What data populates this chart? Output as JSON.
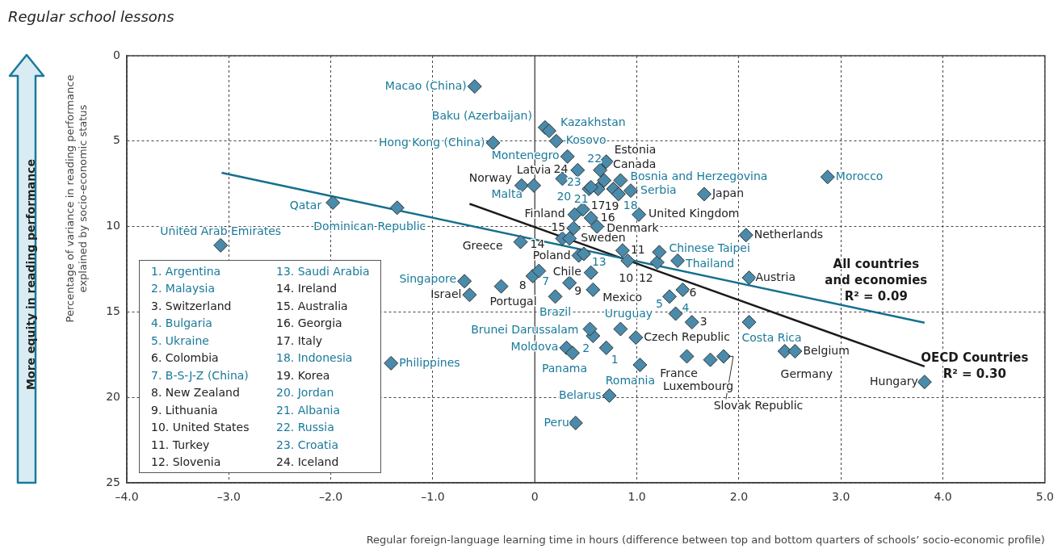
{
  "chart_data": {
    "type": "scatter",
    "title": "Regular school lessons",
    "xlabel": "Regular foreign-language learning time in hours (difference between top and bottom quarters of schools’ socio-economic profile)",
    "ylabel": "Percentage of variance in reading performance explained by socio-economic status",
    "xlim": [
      -4,
      5
    ],
    "xticks": [
      {
        "value": -4,
        "label": "–4.0"
      },
      {
        "value": -3,
        "label": "–3.0"
      },
      {
        "value": -2,
        "label": "–2.0"
      },
      {
        "value": -1,
        "label": "–1.0"
      },
      0,
      {
        "value": 1,
        "label": "1.0"
      },
      {
        "value": 2,
        "label": "2.0"
      },
      {
        "value": 3,
        "label": "3.0"
      },
      {
        "value": 4,
        "label": "4.0"
      },
      {
        "value": 5,
        "label": "5.0"
      }
    ],
    "ylim": [
      25,
      0
    ],
    "yticks": [
      0,
      5,
      10,
      15,
      20,
      25
    ],
    "grid": true,
    "legend": false,
    "marker": "diamond",
    "ref_lines": [
      {
        "axis": "x",
        "value": 0,
        "color": "#555555"
      }
    ],
    "series": [
      {
        "color": "#4a8aaa",
        "x": [
          0.7,
          0.57,
          1.38,
          1.32,
          0.04,
          0.48,
          0.82,
          0.53,
          0.62,
          0.68,
          0.55,
          -0.59,
          0.1,
          0.14,
          0.21,
          -0.41,
          0.32,
          -0.01,
          0.84,
          0.94,
          2.87,
          -1.98,
          -1.35,
          -3.08,
          -0.69,
          1.22,
          1.4,
          0.2,
          0.84,
          0.54,
          0.31,
          0.37,
          1.03,
          0.73,
          0.4,
          2.1,
          -1.41
        ],
        "values": [
          17.1,
          16.4,
          15.1,
          14.1,
          12.6,
          11.6,
          8.1,
          7.8,
          7.8,
          7.3,
          7.7,
          1.8,
          4.2,
          4.4,
          5.0,
          5.1,
          5.9,
          7.6,
          7.3,
          7.9,
          7.1,
          8.6,
          8.9,
          11.1,
          13.2,
          11.5,
          12.0,
          14.1,
          16.0,
          16.0,
          17.1,
          17.4,
          18.1,
          19.9,
          21.5,
          15.6,
          18.0
        ]
      },
      {
        "color": "#4a8aaa",
        "x": [
          1.54,
          1.45,
          -0.02,
          0.34,
          0.91,
          0.86,
          1.2,
          0.27,
          0.38,
          0.55,
          0.47,
          0.77,
          0.42,
          0.7,
          0.64,
          0.27,
          -0.13,
          1.66,
          0.39,
          0.61,
          1.02,
          0.34,
          -0.14,
          0.43,
          0.55,
          -0.64,
          -0.33,
          0.57,
          0.99,
          1.49,
          1.72,
          1.85,
          2.07,
          2.1,
          2.45,
          2.55,
          3.82
        ],
        "values": [
          15.6,
          13.7,
          12.9,
          13.3,
          12.0,
          11.4,
          12.1,
          10.7,
          10.1,
          9.5,
          9.0,
          7.8,
          6.7,
          6.2,
          6.7,
          7.2,
          7.6,
          8.1,
          9.3,
          10.0,
          9.3,
          10.7,
          10.9,
          11.7,
          12.7,
          14.0,
          13.5,
          13.7,
          16.5,
          17.6,
          17.8,
          17.6,
          10.5,
          13.0,
          17.3,
          17.3,
          19.1
        ]
      },
      {
        "type": "line",
        "marker": "none",
        "color": "#14708f",
        "x": [
          -3.07,
          3.82
        ],
        "values": [
          6.85,
          15.63
        ]
      },
      {
        "type": "line",
        "marker": "none",
        "color": "#1a1a1a",
        "x": [
          -0.64,
          3.82
        ],
        "values": [
          8.67,
          18.19
        ]
      }
    ],
    "annotations": [
      {
        "text": "1",
        "x": 0.7,
        "y": 17.1
      },
      {
        "text": "2",
        "x": 0.57,
        "y": 16.4
      },
      {
        "text": "3",
        "x": 1.54,
        "y": 15.6
      },
      {
        "text": "4",
        "x": 1.38,
        "y": 15.1
      },
      {
        "text": "5",
        "x": 1.32,
        "y": 14.1
      },
      {
        "text": "6",
        "x": 1.45,
        "y": 13.7
      },
      {
        "text": "7",
        "x": 0.04,
        "y": 12.6
      },
      {
        "text": "8",
        "x": -0.02,
        "y": 12.9
      },
      {
        "text": "9",
        "x": 0.34,
        "y": 13.3
      },
      {
        "text": "10",
        "x": 0.91,
        "y": 12.0
      },
      {
        "text": "11",
        "x": 0.86,
        "y": 11.4
      },
      {
        "text": "12",
        "x": 1.2,
        "y": 12.1
      },
      {
        "text": "13",
        "x": 0.48,
        "y": 11.6
      },
      {
        "text": "14",
        "x": 0.27,
        "y": 10.7
      },
      {
        "text": "15",
        "x": 0.38,
        "y": 10.1
      },
      {
        "text": "16",
        "x": 0.55,
        "y": 9.5
      },
      {
        "text": "17",
        "x": 0.47,
        "y": 9.0
      },
      {
        "text": "18",
        "x": 0.82,
        "y": 8.1
      },
      {
        "text": "19",
        "x": 0.77,
        "y": 7.8
      },
      {
        "text": "20",
        "x": 0.53,
        "y": 7.8
      },
      {
        "text": "21",
        "x": 0.62,
        "y": 7.8
      },
      {
        "text": "22",
        "x": 0.68,
        "y": 7.3
      },
      {
        "text": "23",
        "x": 0.55,
        "y": 7.7
      },
      {
        "text": "24",
        "x": 0.42,
        "y": 6.7
      },
      {
        "text": "Macao (China)",
        "x": -0.59,
        "y": 1.8
      },
      {
        "text": "Baku (Azerbaijan)",
        "x": 0.1,
        "y": 4.2
      },
      {
        "text": "Kazakhstan",
        "x": 0.14,
        "y": 4.4
      },
      {
        "text": "Kosovo",
        "x": 0.21,
        "y": 5.0
      },
      {
        "text": "Hong Kong (China)",
        "x": -0.41,
        "y": 5.1
      },
      {
        "text": "Montenegro",
        "x": 0.32,
        "y": 5.9
      },
      {
        "text": "Estonia",
        "x": 0.7,
        "y": 6.2
      },
      {
        "text": "Canada",
        "x": 0.64,
        "y": 6.7
      },
      {
        "text": "Latvia",
        "x": 0.27,
        "y": 7.2
      },
      {
        "text": "Norway",
        "x": -0.13,
        "y": 7.6
      },
      {
        "text": "Malta",
        "x": -0.01,
        "y": 7.6
      },
      {
        "text": "Bosnia and Herzegovina",
        "x": 0.84,
        "y": 7.3
      },
      {
        "text": "Serbia",
        "x": 0.94,
        "y": 7.9
      },
      {
        "text": "Japan",
        "x": 1.66,
        "y": 8.1
      },
      {
        "text": "Morocco",
        "x": 2.87,
        "y": 7.1
      },
      {
        "text": "Finland",
        "x": 0.39,
        "y": 9.3
      },
      {
        "text": "Denmark",
        "x": 0.61,
        "y": 10.0
      },
      {
        "text": "United Kingdom",
        "x": 1.02,
        "y": 9.3
      },
      {
        "text": "Sweden",
        "x": 0.34,
        "y": 10.7
      },
      {
        "text": "Greece",
        "x": -0.14,
        "y": 10.9
      },
      {
        "text": "Netherlands",
        "x": 2.07,
        "y": 10.5
      },
      {
        "text": "Chinese Taipei",
        "x": 1.22,
        "y": 11.5
      },
      {
        "text": "Thailand",
        "x": 1.4,
        "y": 12.0
      },
      {
        "text": "Poland",
        "x": 0.43,
        "y": 11.7
      },
      {
        "text": "Chile",
        "x": 0.55,
        "y": 12.7
      },
      {
        "text": "Austria",
        "x": 2.1,
        "y": 13.0
      },
      {
        "text": "Singapore",
        "x": -0.69,
        "y": 13.2
      },
      {
        "text": "Israel",
        "x": -0.64,
        "y": 14.0
      },
      {
        "text": "Portugal",
        "x": -0.33,
        "y": 13.5
      },
      {
        "text": "Mexico",
        "x": 0.57,
        "y": 13.7
      },
      {
        "text": "Brazil",
        "x": 0.2,
        "y": 14.1
      },
      {
        "text": "Uruguay",
        "x": 0.84,
        "y": 16.0
      },
      {
        "text": "Czech Republic",
        "x": 0.99,
        "y": 16.5
      },
      {
        "text": "Brunei Darussalam",
        "x": 0.54,
        "y": 16.0
      },
      {
        "text": "Moldova",
        "x": 0.31,
        "y": 17.1
      },
      {
        "text": "Panama",
        "x": 0.37,
        "y": 17.4
      },
      {
        "text": "Romania",
        "x": 1.03,
        "y": 18.1
      },
      {
        "text": "France",
        "x": 1.49,
        "y": 17.6
      },
      {
        "text": "Luxembourg",
        "x": 1.72,
        "y": 17.8
      },
      {
        "text": "Slovak Republic",
        "x": 1.85,
        "y": 17.6
      },
      {
        "text": "Costa Rica",
        "x": 2.1,
        "y": 15.6
      },
      {
        "text": "Germany",
        "x": 2.45,
        "y": 17.3
      },
      {
        "text": "Belgium",
        "x": 2.55,
        "y": 17.3
      },
      {
        "text": "Hungary",
        "x": 3.82,
        "y": 19.1
      },
      {
        "text": "Belarus",
        "x": 0.73,
        "y": 19.9
      },
      {
        "text": "Peru",
        "x": 0.4,
        "y": 21.5
      },
      {
        "text": "Philippines",
        "x": -1.41,
        "y": 18.0
      },
      {
        "text": "Qatar",
        "x": -1.98,
        "y": 8.6
      },
      {
        "text": "Dominican Republic",
        "x": -1.35,
        "y": 8.9
      },
      {
        "text": "United Arab Emirates",
        "x": -3.08,
        "y": 11.1
      },
      {
        "text": "All countries and economies R² = 0.09",
        "x": 3.82,
        "y": 15.63
      },
      {
        "text": "OECD Countries R² = 0.30",
        "x": 3.82,
        "y": 18.19
      },
      "1. Argentina",
      "2. Malaysia",
      "3. Switzerland",
      "4. Bulgaria",
      "5. Ukraine",
      "6. Colombia",
      "7. B-S-J-Z (China)",
      "8. New Zealand",
      "9. Lithuania",
      "10. United States",
      "11. Turkey",
      "12. Slovenia",
      "13. Saudi Arabia",
      "14. Ireland",
      "15. Australia",
      "16. Georgia",
      "17. Italy",
      "18. Indonesia",
      "19. Korea",
      "20. Jordan",
      "21. Albania",
      "22. Russia",
      "23. Croatia",
      "24. Iceland",
      "More equity in reading performance"
    ]
  }
}
